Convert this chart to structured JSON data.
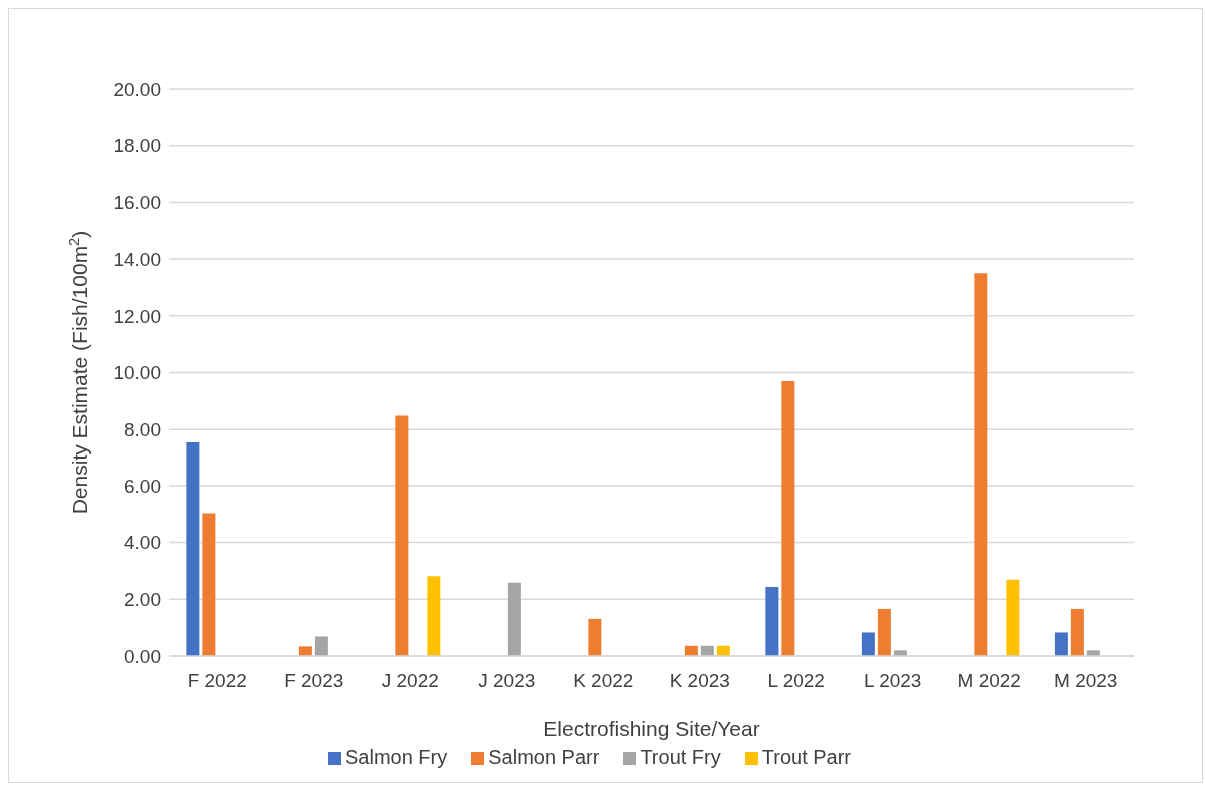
{
  "chart_data": {
    "type": "bar",
    "xlabel": "Electrofishing Site/Year",
    "ylabel": "Density Estimate (Fish/100m$^{2}$)",
    "categories": [
      "F 2022",
      "F 2023",
      "J 2022",
      "J 2023",
      "K 2022",
      "K 2023",
      "L 2022",
      "L 2023",
      "M 2022",
      "M 2023"
    ],
    "series": [
      {
        "name": "Salmon Fry",
        "color": "#4472c4",
        "values": [
          7.55,
          0,
          0,
          0,
          0,
          0,
          2.43,
          0.83,
          0,
          0.83
        ]
      },
      {
        "name": "Salmon Parr",
        "color": "#ed7d31",
        "values": [
          5.03,
          0.34,
          8.48,
          0,
          1.31,
          0.36,
          9.7,
          1.66,
          13.5,
          1.66
        ]
      },
      {
        "name": "Trout Fry",
        "color": "#a5a5a5",
        "values": [
          0,
          0.69,
          0,
          2.58,
          0,
          0.36,
          0,
          0.2,
          0,
          0.2
        ]
      },
      {
        "name": "Trout Parr",
        "color": "#ffc000",
        "values": [
          0,
          0,
          2.81,
          0,
          0,
          0.36,
          0,
          0,
          2.69,
          0
        ]
      }
    ],
    "ylim": [
      0,
      20
    ],
    "yticks": [
      {
        "value": 0,
        "label": "0.00"
      },
      {
        "value": 2,
        "label": "2.00"
      },
      {
        "value": 4,
        "label": "4.00"
      },
      {
        "value": 6,
        "label": "6.00"
      },
      {
        "value": 8,
        "label": "8.00"
      },
      {
        "value": 10,
        "label": "10.00"
      },
      {
        "value": 12,
        "label": "12.00"
      },
      {
        "value": 14,
        "label": "14.00"
      },
      {
        "value": 16,
        "label": "16.00"
      },
      {
        "value": 18,
        "label": "18.00"
      },
      {
        "value": 20,
        "label": "20.00"
      }
    ],
    "grid": "y",
    "legend": "bottom"
  }
}
